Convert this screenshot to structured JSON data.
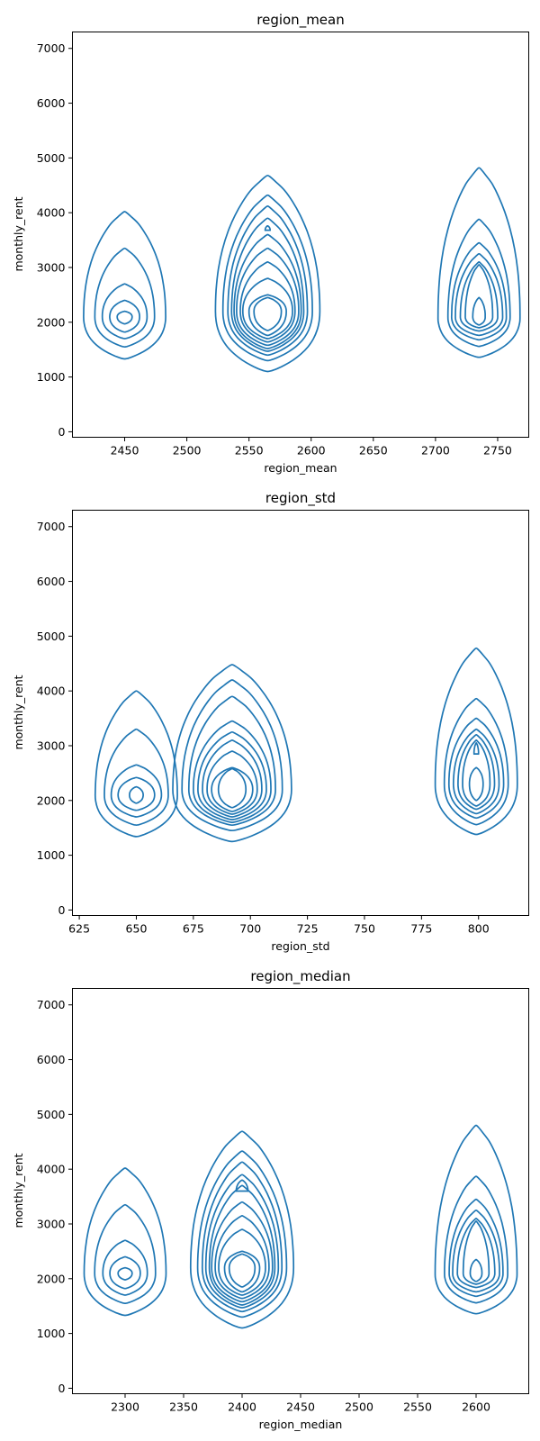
{
  "figure": {
    "line_color": "#1f77b4"
  },
  "chart_data": [
    {
      "type": "kde-contour",
      "title": "region_mean",
      "xlabel": "region_mean",
      "ylabel": "monthly_rent",
      "xlim": [
        2408,
        2775
      ],
      "ylim": [
        -100,
        7300
      ],
      "xticks": [
        2450,
        2500,
        2550,
        2600,
        2650,
        2700,
        2750
      ],
      "yticks": [
        0,
        1000,
        2000,
        3000,
        4000,
        5000,
        6000,
        7000
      ],
      "grid": false,
      "clusters": [
        {
          "x": 2450,
          "outer_y_range": [
            1330,
            4020
          ],
          "mode_y": 2100,
          "levels": [
            {
              "y_range": [
                1330,
                4020
              ],
              "x_half_width": 33
            },
            {
              "y_range": [
                1550,
                3350
              ],
              "x_half_width": 24
            },
            {
              "y_range": [
                1700,
                2700
              ],
              "x_half_width": 18
            },
            {
              "y_range": [
                1820,
                2400
              ],
              "x_half_width": 12
            },
            {
              "y_range": [
                1970,
                2200
              ],
              "x_half_width": 6
            }
          ]
        },
        {
          "x": 2565,
          "outer_y_range": [
            1100,
            4680
          ],
          "mode_y": 2200,
          "levels": [
            {
              "y_range": [
                1100,
                4680
              ],
              "x_half_width": 42
            },
            {
              "y_range": [
                1300,
                4320
              ],
              "x_half_width": 36
            },
            {
              "y_range": [
                1400,
                4120
              ],
              "x_half_width": 32
            },
            {
              "y_range": [
                1470,
                3900
              ],
              "x_half_width": 29
            },
            {
              "y_range": [
                1520,
                3600
              ],
              "x_half_width": 27
            },
            {
              "y_range": [
                1580,
                3350
              ],
              "x_half_width": 25
            },
            {
              "y_range": [
                1640,
                3100
              ],
              "x_half_width": 22
            },
            {
              "y_range": [
                1700,
                2800
              ],
              "x_half_width": 20
            },
            {
              "y_range": [
                1760,
                2500
              ],
              "x_half_width": 15
            },
            {
              "y_range": [
                1850,
                2450
              ],
              "x_half_width": 11
            },
            {
              "y_range": [
                3680,
                3760
              ],
              "x_half_width": 2
            }
          ]
        },
        {
          "x": 2735,
          "outer_y_range": [
            1360,
            4820
          ],
          "mode_y": 2100,
          "levels": [
            {
              "y_range": [
                1360,
                4820
              ],
              "x_half_width": 33
            },
            {
              "y_range": [
                1560,
                3880
              ],
              "x_half_width": 25
            },
            {
              "y_range": [
                1680,
                3450
              ],
              "x_half_width": 22
            },
            {
              "y_range": [
                1760,
                3250
              ],
              "x_half_width": 19
            },
            {
              "y_range": [
                1840,
                3100
              ],
              "x_half_width": 15
            },
            {
              "y_range": [
                1900,
                3050
              ],
              "x_half_width": 11
            },
            {
              "y_range": [
                1950,
                2450
              ],
              "x_half_width": 5
            }
          ]
        }
      ]
    },
    {
      "type": "kde-contour",
      "title": "region_std",
      "xlabel": "region_std",
      "ylabel": "monthly_rent",
      "xlim": [
        622,
        822
      ],
      "ylim": [
        -100,
        7300
      ],
      "xticks": [
        625,
        650,
        675,
        700,
        725,
        750,
        775,
        800
      ],
      "yticks": [
        0,
        1000,
        2000,
        3000,
        4000,
        5000,
        6000,
        7000
      ],
      "grid": false,
      "clusters": [
        {
          "x": 650,
          "outer_y_range": [
            1340,
            4000
          ],
          "mode_y": 2100,
          "levels": [
            {
              "y_range": [
                1340,
                4000
              ],
              "x_half_width": 18
            },
            {
              "y_range": [
                1550,
                3300
              ],
              "x_half_width": 14
            },
            {
              "y_range": [
                1700,
                2650
              ],
              "x_half_width": 11
            },
            {
              "y_range": [
                1820,
                2420
              ],
              "x_half_width": 8
            },
            {
              "y_range": [
                1950,
                2250
              ],
              "x_half_width": 3
            }
          ]
        },
        {
          "x": 692,
          "outer_y_range": [
            1250,
            4480
          ],
          "mode_y": 2200,
          "levels": [
            {
              "y_range": [
                1250,
                4480
              ],
              "x_half_width": 26
            },
            {
              "y_range": [
                1450,
                4200
              ],
              "x_half_width": 22
            },
            {
              "y_range": [
                1550,
                3900
              ],
              "x_half_width": 19
            },
            {
              "y_range": [
                1600,
                3450
              ],
              "x_half_width": 17
            },
            {
              "y_range": [
                1650,
                3250
              ],
              "x_half_width": 15
            },
            {
              "y_range": [
                1700,
                3100
              ],
              "x_half_width": 13
            },
            {
              "y_range": [
                1750,
                2900
              ],
              "x_half_width": 11
            },
            {
              "y_range": [
                1800,
                2600
              ],
              "x_half_width": 9
            },
            {
              "y_range": [
                1870,
                2580
              ],
              "x_half_width": 6
            }
          ]
        },
        {
          "x": 799,
          "outer_y_range": [
            1380,
            4780
          ],
          "mode_y": 2300,
          "levels": [
            {
              "y_range": [
                1380,
                4780
              ],
              "x_half_width": 18
            },
            {
              "y_range": [
                1560,
                3860
              ],
              "x_half_width": 14
            },
            {
              "y_range": [
                1680,
                3500
              ],
              "x_half_width": 12
            },
            {
              "y_range": [
                1760,
                3300
              ],
              "x_half_width": 10
            },
            {
              "y_range": [
                1840,
                3200
              ],
              "x_half_width": 8
            },
            {
              "y_range": [
                1900,
                3100
              ],
              "x_half_width": 6
            },
            {
              "y_range": [
                2000,
                2600
              ],
              "x_half_width": 3
            },
            {
              "y_range": [
                2850,
                3050
              ],
              "x_half_width": 1
            }
          ]
        }
      ]
    },
    {
      "type": "kde-contour",
      "title": "region_median",
      "xlabel": "region_median",
      "ylabel": "monthly_rent",
      "xlim": [
        2255,
        2645
      ],
      "ylim": [
        -100,
        7300
      ],
      "xticks": [
        2300,
        2350,
        2400,
        2450,
        2500,
        2550,
        2600
      ],
      "yticks": [
        0,
        1000,
        2000,
        3000,
        4000,
        5000,
        6000,
        7000
      ],
      "grid": false,
      "clusters": [
        {
          "x": 2300,
          "outer_y_range": [
            1330,
            4020
          ],
          "mode_y": 2100,
          "levels": [
            {
              "y_range": [
                1330,
                4020
              ],
              "x_half_width": 35
            },
            {
              "y_range": [
                1550,
                3350
              ],
              "x_half_width": 26
            },
            {
              "y_range": [
                1700,
                2700
              ],
              "x_half_width": 19
            },
            {
              "y_range": [
                1820,
                2400
              ],
              "x_half_width": 13
            },
            {
              "y_range": [
                1980,
                2200
              ],
              "x_half_width": 6
            }
          ]
        },
        {
          "x": 2400,
          "outer_y_range": [
            1100,
            4690
          ],
          "mode_y": 2200,
          "levels": [
            {
              "y_range": [
                1100,
                4690
              ],
              "x_half_width": 44
            },
            {
              "y_range": [
                1300,
                4330
              ],
              "x_half_width": 38
            },
            {
              "y_range": [
                1400,
                4130
              ],
              "x_half_width": 34
            },
            {
              "y_range": [
                1470,
                3900
              ],
              "x_half_width": 31
            },
            {
              "y_range": [
                1520,
                3700
              ],
              "x_half_width": 28
            },
            {
              "y_range": [
                1580,
                3400
              ],
              "x_half_width": 26
            },
            {
              "y_range": [
                1640,
                3150
              ],
              "x_half_width": 23
            },
            {
              "y_range": [
                1700,
                2900
              ],
              "x_half_width": 20
            },
            {
              "y_range": [
                1760,
                2500
              ],
              "x_half_width": 15
            },
            {
              "y_range": [
                1850,
                2450
              ],
              "x_half_width": 11
            },
            {
              "y_range": [
                3600,
                3800
              ],
              "x_half_width": 5
            }
          ]
        },
        {
          "x": 2600,
          "outer_y_range": [
            1360,
            4800
          ],
          "mode_y": 2100,
          "levels": [
            {
              "y_range": [
                1360,
                4800
              ],
              "x_half_width": 35
            },
            {
              "y_range": [
                1560,
                3870
              ],
              "x_half_width": 27
            },
            {
              "y_range": [
                1680,
                3450
              ],
              "x_half_width": 23
            },
            {
              "y_range": [
                1760,
                3250
              ],
              "x_half_width": 20
            },
            {
              "y_range": [
                1840,
                3100
              ],
              "x_half_width": 16
            },
            {
              "y_range": [
                1900,
                3050
              ],
              "x_half_width": 11
            },
            {
              "y_range": [
                1950,
                2350
              ],
              "x_half_width": 5
            }
          ]
        }
      ]
    }
  ]
}
